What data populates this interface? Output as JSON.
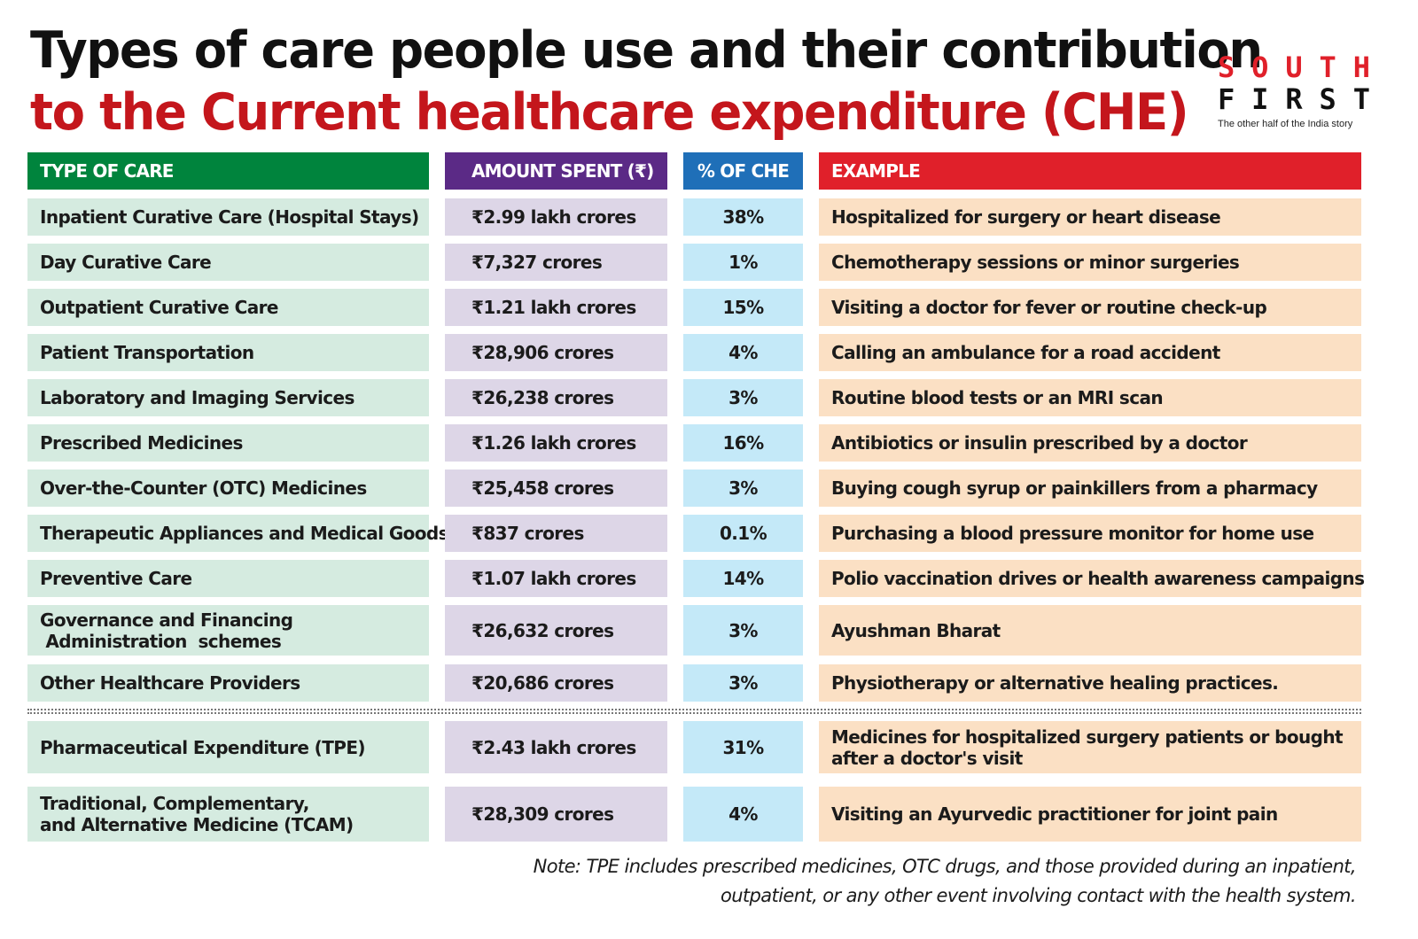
{
  "title_line1": "Types of care people use and their contribution",
  "title_line2": "to the Current healthcare expenditure (CHE)",
  "logo": {
    "south": [
      "S",
      "O",
      "U",
      "T",
      "H"
    ],
    "first": [
      "F",
      "I",
      "R",
      "S",
      "T"
    ],
    "tagline": "The other half of the India story"
  },
  "colors": {
    "header_type": "#00843d",
    "header_amount": "#5b2a86",
    "header_pct": "#1f6fb8",
    "header_example": "#e0202a",
    "title_red": "#c4161c"
  },
  "chart_data": {
    "type": "table",
    "columns": [
      "TYPE OF CARE",
      "AMOUNT SPENT (₹)",
      "% OF CHE",
      "EXAMPLE"
    ],
    "rows": [
      {
        "type": "Inpatient Curative Care (Hospital Stays)",
        "amount": "₹2.99 lakh crores",
        "pct": "38%",
        "example": "Hospitalized for surgery or heart disease"
      },
      {
        "type": "Day Curative Care",
        "amount": "₹7,327 crores",
        "pct": "1%",
        "example": "Chemotherapy sessions or minor surgeries"
      },
      {
        "type": "Outpatient Curative Care",
        "amount": "₹1.21 lakh crores",
        "pct": "15%",
        "example": "Visiting a doctor for fever or routine check-up"
      },
      {
        "type": "Patient Transportation",
        "amount": "₹28,906 crores",
        "pct": "4%",
        "example": "Calling an ambulance for a road accident"
      },
      {
        "type": "Laboratory and Imaging Services",
        "amount": "₹26,238 crores",
        "pct": "3%",
        "example": "Routine blood tests or an MRI scan"
      },
      {
        "type": "Prescribed Medicines",
        "amount": "₹1.26 lakh crores",
        "pct": "16%",
        "example": "Antibiotics or insulin prescribed by a doctor"
      },
      {
        "type": "Over-the-Counter (OTC) Medicines",
        "amount": "₹25,458 crores",
        "pct": "3%",
        "example": "Buying cough syrup or painkillers from a pharmacy"
      },
      {
        "type": "Therapeutic Appliances and Medical Goods",
        "amount": "₹837 crores",
        "pct": "0.1%",
        "example": "Purchasing a blood pressure monitor for home use"
      },
      {
        "type": "Preventive Care",
        "amount": "₹1.07 lakh crores",
        "pct": "14%",
        "example": "Polio vaccination drives or health awareness campaigns"
      },
      {
        "type": "Governance and Financing\n Administration  schemes",
        "amount": "₹26,632 crores",
        "pct": "3%",
        "example": "Ayushman Bharat"
      },
      {
        "type": "Other Healthcare Providers",
        "amount": "₹20,686 crores",
        "pct": "3%",
        "example": "Physiotherapy or alternative healing practices."
      },
      {
        "type": "Pharmaceutical Expenditure (TPE)",
        "amount": "₹2.43 lakh crores",
        "pct": "31%",
        "example": "Medicines for hospitalized surgery patients or bought after a doctor's visit"
      },
      {
        "type": "Traditional, Complementary,\nand Alternative Medicine (TCAM)",
        "amount": "₹28,309 crores",
        "pct": "4%",
        "example": "Visiting an Ayurvedic practitioner for joint pain"
      }
    ],
    "note": "Note: TPE includes prescribed medicines, OTC drugs, and those provided during an inpatient, outpatient, or any other event involving contact with the health system."
  }
}
